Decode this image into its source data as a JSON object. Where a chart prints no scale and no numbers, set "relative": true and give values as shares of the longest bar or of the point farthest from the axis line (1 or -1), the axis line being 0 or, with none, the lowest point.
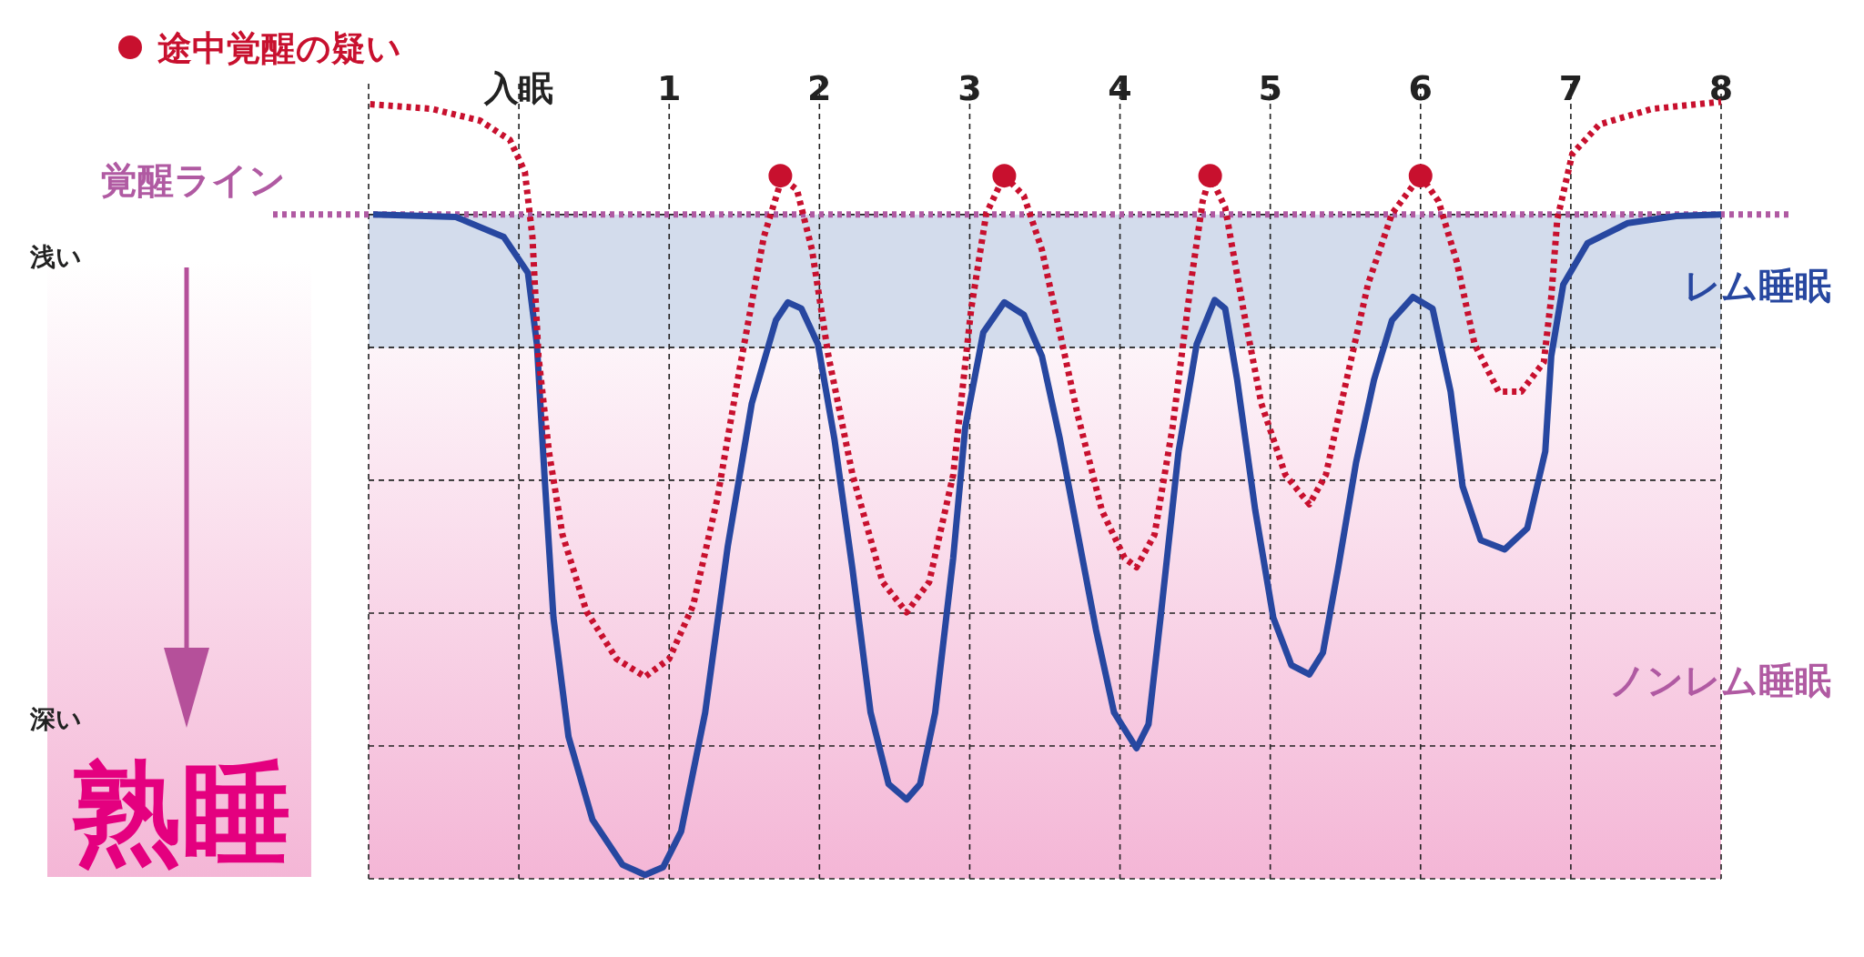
{
  "chart_data": {
    "type": "line",
    "relative": true,
    "grid": true,
    "legend": "top left",
    "xlim": [
      -1,
      8
    ],
    "xticks": [
      {
        "value": -1,
        "label": null
      },
      {
        "value": 0,
        "label": "入眠"
      },
      1,
      2,
      3,
      4,
      5,
      6,
      7,
      8
    ],
    "ref_lines": [
      {
        "axis": "y",
        "value": 0.855,
        "label": "覚醒ライン",
        "color": "#b05aa2",
        "line_style": "dotted"
      }
    ],
    "bands": [
      {
        "axis": "y",
        "from": 0.683,
        "to": 0.855,
        "label": "レム睡眠",
        "color": "#d3dcec"
      },
      {
        "axis": "y",
        "from": 0,
        "to": 0.683,
        "label": "ノンレム睡眠",
        "color": "#f4b6d6"
      }
    ],
    "annotations": [
      "浅い",
      "深い",
      "熟睡"
    ],
    "series": [
      {
        "color": "#2747a0",
        "line_style": "solid",
        "x": [
          -0.97,
          -0.42,
          -0.1,
          0.06,
          0.12,
          0.17,
          0.23,
          0.33,
          0.49,
          0.69,
          0.84,
          0.96,
          1.08,
          1.24,
          1.39,
          1.55,
          1.71,
          1.79,
          1.88,
          1.99,
          2.1,
          2.22,
          2.34,
          2.46,
          2.58,
          2.67,
          2.77,
          2.89,
          2.97,
          3.09,
          3.23,
          3.36,
          3.48,
          3.6,
          3.72,
          3.84,
          3.96,
          4.11,
          4.19,
          4.27,
          4.39,
          4.51,
          4.63,
          4.7,
          4.78,
          4.9,
          5.02,
          5.14,
          5.26,
          5.35,
          5.45,
          5.57,
          5.69,
          5.81,
          5.95,
          6.08,
          6.2,
          6.28,
          6.4,
          6.56,
          6.71,
          6.83,
          6.87,
          6.95,
          7.11,
          7.38,
          7.7,
          8.0
        ],
        "values": [
          0.855,
          0.852,
          0.826,
          0.78,
          0.688,
          0.52,
          0.336,
          0.183,
          0.076,
          0.018,
          0.005,
          0.015,
          0.061,
          0.214,
          0.428,
          0.612,
          0.719,
          0.742,
          0.734,
          0.688,
          0.566,
          0.398,
          0.214,
          0.122,
          0.102,
          0.122,
          0.214,
          0.413,
          0.581,
          0.703,
          0.742,
          0.726,
          0.673,
          0.566,
          0.443,
          0.321,
          0.214,
          0.168,
          0.199,
          0.336,
          0.55,
          0.688,
          0.745,
          0.734,
          0.642,
          0.474,
          0.336,
          0.275,
          0.263,
          0.291,
          0.398,
          0.535,
          0.642,
          0.719,
          0.749,
          0.734,
          0.627,
          0.505,
          0.436,
          0.424,
          0.451,
          0.55,
          0.673,
          0.765,
          0.818,
          0.844,
          0.853,
          0.855
        ]
      },
      {
        "color": "#c8102e",
        "line_style": "dotted",
        "x": [
          -0.99,
          -0.58,
          -0.26,
          -0.06,
          0.04,
          0.09,
          0.13,
          0.2,
          0.29,
          0.45,
          0.65,
          0.84,
          1.0,
          1.16,
          1.32,
          1.47,
          1.63,
          1.75,
          1.85,
          1.95,
          2.06,
          2.22,
          2.42,
          2.58,
          2.73,
          2.89,
          3.01,
          3.11,
          3.23,
          3.36,
          3.48,
          3.6,
          3.72,
          3.88,
          4.03,
          4.11,
          4.23,
          4.35,
          4.47,
          4.55,
          4.6,
          4.7,
          4.82,
          4.94,
          5.1,
          5.26,
          5.37,
          5.49,
          5.65,
          5.81,
          6.0,
          6.12,
          6.24,
          6.36,
          6.52,
          6.67,
          6.82,
          6.87,
          6.91,
          7.01,
          7.19,
          7.54,
          8.0
        ],
        "values": [
          0.997,
          0.991,
          0.976,
          0.951,
          0.91,
          0.826,
          0.673,
          0.55,
          0.443,
          0.344,
          0.283,
          0.26,
          0.283,
          0.352,
          0.489,
          0.657,
          0.826,
          0.902,
          0.887,
          0.81,
          0.673,
          0.52,
          0.382,
          0.343,
          0.382,
          0.52,
          0.734,
          0.856,
          0.905,
          0.879,
          0.81,
          0.703,
          0.596,
          0.474,
          0.413,
          0.401,
          0.443,
          0.581,
          0.765,
          0.872,
          0.905,
          0.864,
          0.734,
          0.612,
          0.52,
          0.482,
          0.52,
          0.627,
          0.765,
          0.856,
          0.905,
          0.872,
          0.795,
          0.688,
          0.627,
          0.627,
          0.665,
          0.749,
          0.849,
          0.933,
          0.971,
          0.991,
          1.0
        ]
      },
      {
        "type": "scatter",
        "name": "途中覚醒の疑い",
        "color": "#c8102e",
        "marker": "circle",
        "x": [
          1.74,
          3.23,
          4.6,
          6.0
        ],
        "values": [
          0.905,
          0.905,
          0.905,
          0.905
        ]
      }
    ]
  }
}
